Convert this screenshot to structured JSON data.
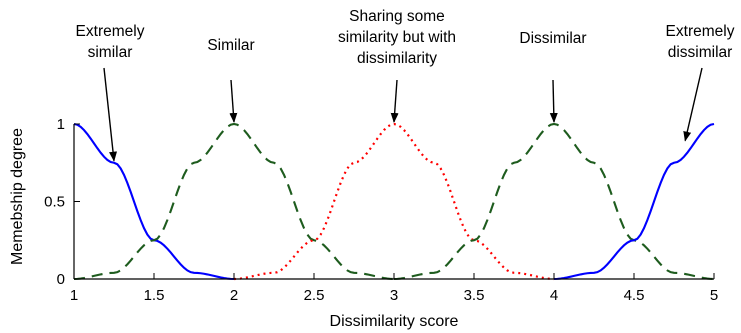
{
  "chart_data": {
    "type": "line",
    "title": "",
    "xlabel": "Dissimilarity score",
    "ylabel": "Memebship degree",
    "xlim": [
      1,
      5
    ],
    "ylim": [
      0,
      1
    ],
    "x_ticks": [
      "1",
      "1.5",
      "2",
      "2.5",
      "3",
      "3.5",
      "4",
      "4.5",
      "5"
    ],
    "y_ticks": [
      "0",
      "0.5",
      "1"
    ],
    "grid": false,
    "legend": "none",
    "series": [
      {
        "key": "extremely_similar",
        "style": "solid",
        "color": "#0000ff",
        "x": [
          1.0,
          1.25,
          1.5,
          1.75,
          2.0
        ],
        "y": [
          1.0,
          0.75,
          0.25,
          0.04,
          0.0
        ]
      },
      {
        "key": "similar",
        "style": "dashed",
        "color": "#1e5c1e",
        "x": [
          1.0,
          1.25,
          1.5,
          1.75,
          2.0,
          2.25,
          2.5,
          2.75,
          3.0
        ],
        "y": [
          0.0,
          0.04,
          0.25,
          0.75,
          1.0,
          0.75,
          0.25,
          0.04,
          0.0
        ]
      },
      {
        "key": "sharing_some",
        "style": "dotted",
        "color": "#ff0000",
        "x": [
          2.0,
          2.25,
          2.5,
          2.75,
          3.0,
          3.25,
          3.5,
          3.75,
          4.0
        ],
        "y": [
          0.0,
          0.04,
          0.25,
          0.75,
          1.0,
          0.75,
          0.25,
          0.04,
          0.0
        ]
      },
      {
        "key": "dissimilar",
        "style": "dashed",
        "color": "#1e5c1e",
        "x": [
          3.0,
          3.25,
          3.5,
          3.75,
          4.0,
          4.25,
          4.5,
          4.75,
          5.0
        ],
        "y": [
          0.0,
          0.04,
          0.25,
          0.75,
          1.0,
          0.75,
          0.25,
          0.04,
          0.0
        ]
      },
      {
        "key": "extremely_dissimilar",
        "style": "solid",
        "color": "#0000ff",
        "x": [
          4.0,
          4.25,
          4.5,
          4.75,
          5.0
        ],
        "y": [
          0.0,
          0.04,
          0.25,
          0.75,
          1.0
        ]
      }
    ],
    "annotations": [
      {
        "lines": [
          "Extremely",
          "similar"
        ],
        "target": [
          1.25,
          0.75
        ]
      },
      {
        "lines": [
          "Similar"
        ],
        "target": [
          2.0,
          1.0
        ]
      },
      {
        "lines": [
          "Sharing some",
          "similarity but with",
          "dissimilarity"
        ],
        "target": [
          3.0,
          1.0
        ]
      },
      {
        "lines": [
          "Dissimilar"
        ],
        "target": [
          4.0,
          1.0
        ]
      },
      {
        "lines": [
          "Extremely",
          "dissimilar"
        ],
        "target": [
          4.82,
          0.88
        ]
      }
    ]
  }
}
